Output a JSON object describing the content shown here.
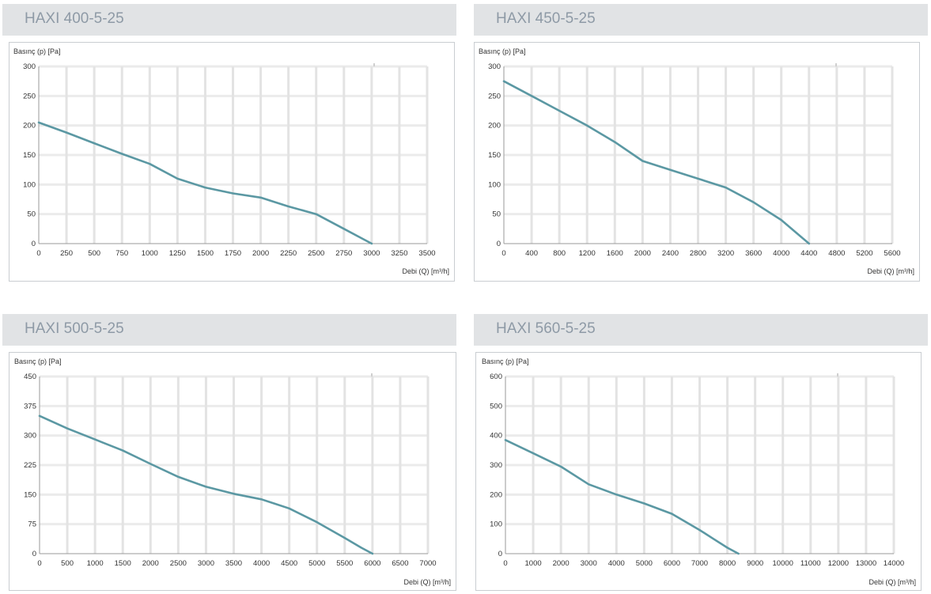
{
  "chart_data": [
    {
      "type": "line",
      "title": "HAXI 400-5-25",
      "ylabel": "Basınç (p) [Pa]",
      "xlabel": "Debi (Q) [m³/h]",
      "xlim": [
        0,
        3500
      ],
      "ylim": [
        0,
        300
      ],
      "xticks": [
        0,
        250,
        500,
        750,
        1000,
        1250,
        1500,
        1750,
        2000,
        2250,
        2500,
        2750,
        3000,
        3250,
        3500
      ],
      "yticks": [
        0,
        50,
        100,
        150,
        200,
        250,
        300
      ],
      "grid": true,
      "line_color": "#5b98a3",
      "series": [
        {
          "x": [
            0,
            250,
            500,
            750,
            1000,
            1250,
            1500,
            1750,
            2000,
            2250,
            2500,
            2750,
            2900,
            3000
          ],
          "y": [
            205,
            188,
            170,
            152,
            135,
            110,
            95,
            85,
            78,
            63,
            50,
            25,
            10,
            0
          ]
        }
      ]
    },
    {
      "type": "line",
      "title": "HAXI 450-5-25",
      "ylabel": "Basınç (p) [Pa]",
      "xlabel": "Debi (Q) [m³/h]",
      "xlim": [
        0,
        5600
      ],
      "ylim": [
        0,
        300
      ],
      "xticks": [
        0,
        400,
        800,
        1200,
        1600,
        2000,
        2400,
        2800,
        3200,
        3600,
        4000,
        4400,
        4800,
        5200,
        5600
      ],
      "yticks": [
        0,
        50,
        100,
        150,
        200,
        250,
        300
      ],
      "grid": true,
      "line_color": "#5b98a3",
      "series": [
        {
          "x": [
            0,
            400,
            800,
            1200,
            1600,
            1900,
            2000,
            2400,
            2800,
            3200,
            3600,
            4000,
            4200,
            4400
          ],
          "y": [
            275,
            250,
            225,
            200,
            172,
            148,
            140,
            125,
            110,
            95,
            70,
            40,
            20,
            0
          ]
        }
      ]
    },
    {
      "type": "line",
      "title": "HAXI 500-5-25",
      "ylabel": "Basınç (p) [Pa]",
      "xlabel": "Debi (Q) [m³/h]",
      "xlim": [
        0,
        7000
      ],
      "ylim": [
        0,
        450
      ],
      "xticks": [
        0,
        500,
        1000,
        1500,
        2000,
        2500,
        3000,
        3500,
        4000,
        4500,
        5000,
        5500,
        6000,
        6500,
        7000
      ],
      "yticks": [
        0,
        75,
        150,
        225,
        300,
        375,
        450
      ],
      "grid": true,
      "line_color": "#5b98a3",
      "series": [
        {
          "x": [
            0,
            500,
            1000,
            1500,
            2000,
            2500,
            3000,
            3500,
            4000,
            4500,
            5000,
            5500,
            5800,
            6000
          ],
          "y": [
            350,
            318,
            290,
            262,
            228,
            195,
            170,
            152,
            138,
            115,
            80,
            40,
            15,
            0
          ]
        }
      ]
    },
    {
      "type": "line",
      "title": "HAXI 560-5-25",
      "ylabel": "Basınç (p) [Pa]",
      "xlabel": "Debi (Q) [m³/h]",
      "xlim": [
        0,
        14000
      ],
      "ylim": [
        0,
        600
      ],
      "xticks": [
        0,
        1000,
        2000,
        3000,
        4000,
        5000,
        6000,
        7000,
        8000,
        9000,
        10000,
        11000,
        12000,
        13000,
        14000
      ],
      "yticks": [
        0,
        100,
        200,
        300,
        400,
        500,
        600
      ],
      "grid": true,
      "line_color": "#5b98a3",
      "series": [
        {
          "x": [
            0,
            1000,
            2000,
            3000,
            4000,
            5000,
            6000,
            7000,
            7500,
            8000,
            8400
          ],
          "y": [
            385,
            340,
            295,
            235,
            200,
            170,
            135,
            80,
            50,
            20,
            0
          ]
        }
      ]
    }
  ]
}
